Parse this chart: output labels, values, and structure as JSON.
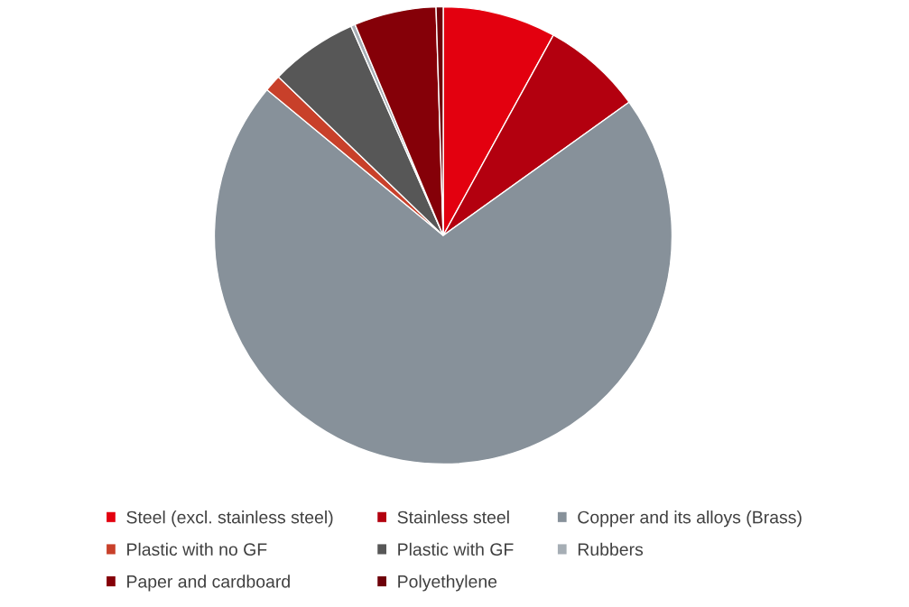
{
  "chart_data": {
    "type": "pie",
    "categories": [
      "Steel (excl. stainless steel)",
      "Stainless steel",
      "Copper and its alloys (Brass)",
      "Plastic with no GF",
      "Plastic with GF",
      "Rubbers",
      "Paper and cardboard",
      "Polyethylene"
    ],
    "values": [
      8.0,
      7.1,
      70.9,
      1.2,
      6.2,
      0.3,
      5.8,
      0.5
    ],
    "colors": [
      "#e3000f",
      "#b3000f",
      "#87919a",
      "#c8402a",
      "#575757",
      "#a6aeb5",
      "#850008",
      "#6e0009"
    ],
    "legend": "bottom"
  }
}
